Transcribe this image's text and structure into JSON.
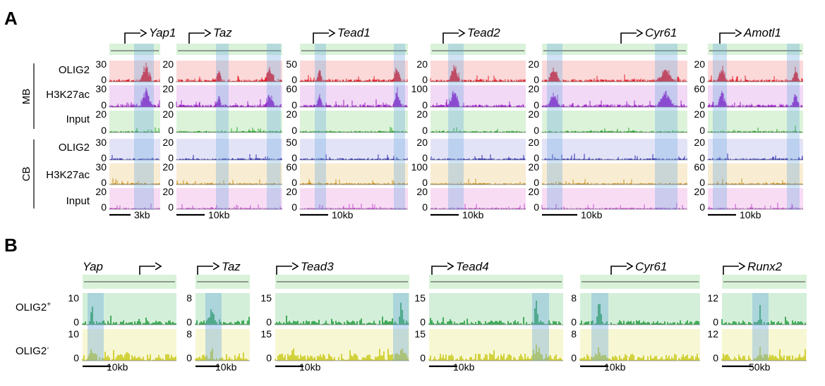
{
  "panelA": {
    "letter": "A",
    "groups": [
      "MB",
      "CB"
    ],
    "row_labels": [
      "OLIG2",
      "H3K27ac",
      "Input",
      "OLIG2",
      "H3K27ac",
      "Input"
    ],
    "track_colors": [
      "#e8202a",
      "#9b1fc9",
      "#2aa82a",
      "#2b2bb5",
      "#c9921e",
      "#c84fd6"
    ],
    "track_bg_colors": [
      "#fbd9d9",
      "#f2d9f5",
      "#dcf3da",
      "#e3e3f7",
      "#f8ecd2",
      "#f8dcf4"
    ],
    "genes": [
      {
        "name": "Yap1",
        "scale": "3kb",
        "ticks": [
          "30",
          "30",
          "20",
          "30",
          "30",
          "20"
        ]
      },
      {
        "name": "Taz",
        "scale": "10kb",
        "ticks": [
          "20",
          "20",
          "20",
          "20",
          "20",
          "20"
        ]
      },
      {
        "name": "Tead1",
        "scale": "10kb",
        "ticks": [
          "50",
          "60",
          "20",
          "50",
          "60",
          "20"
        ]
      },
      {
        "name": "Tead2",
        "scale": "10kb",
        "ticks": [
          "20",
          "100",
          "20",
          "20",
          "100",
          "20"
        ]
      },
      {
        "name": "Cyr61",
        "scale": "10kb",
        "ticks": [
          "20",
          "20",
          "20",
          "20",
          "20",
          "20"
        ]
      },
      {
        "name": "Amotl1",
        "scale": "10kb",
        "ticks": [
          "20",
          "60",
          "20",
          "20",
          "60",
          "20"
        ]
      }
    ]
  },
  "panelB": {
    "letter": "B",
    "row_labels": [
      "OLIG2",
      "OLIG2"
    ],
    "row_superscripts": [
      "+",
      "-"
    ],
    "track_colors": [
      "#1e9a3a",
      "#c9c916"
    ],
    "track_bg_colors": [
      "#d4efd9",
      "#f8f7d3"
    ],
    "genes": [
      {
        "name": "Yap",
        "scale": "10kb",
        "ticks": [
          "10",
          "10"
        ]
      },
      {
        "name": "Taz",
        "scale": "10kb",
        "ticks": [
          "8",
          "8"
        ]
      },
      {
        "name": "Tead3",
        "scale": "10kb",
        "ticks": [
          "15",
          "15"
        ]
      },
      {
        "name": "Tead4",
        "scale": "10kb",
        "ticks": [
          "15",
          "15"
        ]
      },
      {
        "name": "Cyr61",
        "scale": "10kb",
        "ticks": [
          "8",
          "8"
        ]
      },
      {
        "name": "Runx2",
        "scale": "50kb",
        "ticks": [
          "12",
          "12"
        ]
      }
    ]
  },
  "zero_tick": "0",
  "highlight_color": "#6aa9df"
}
